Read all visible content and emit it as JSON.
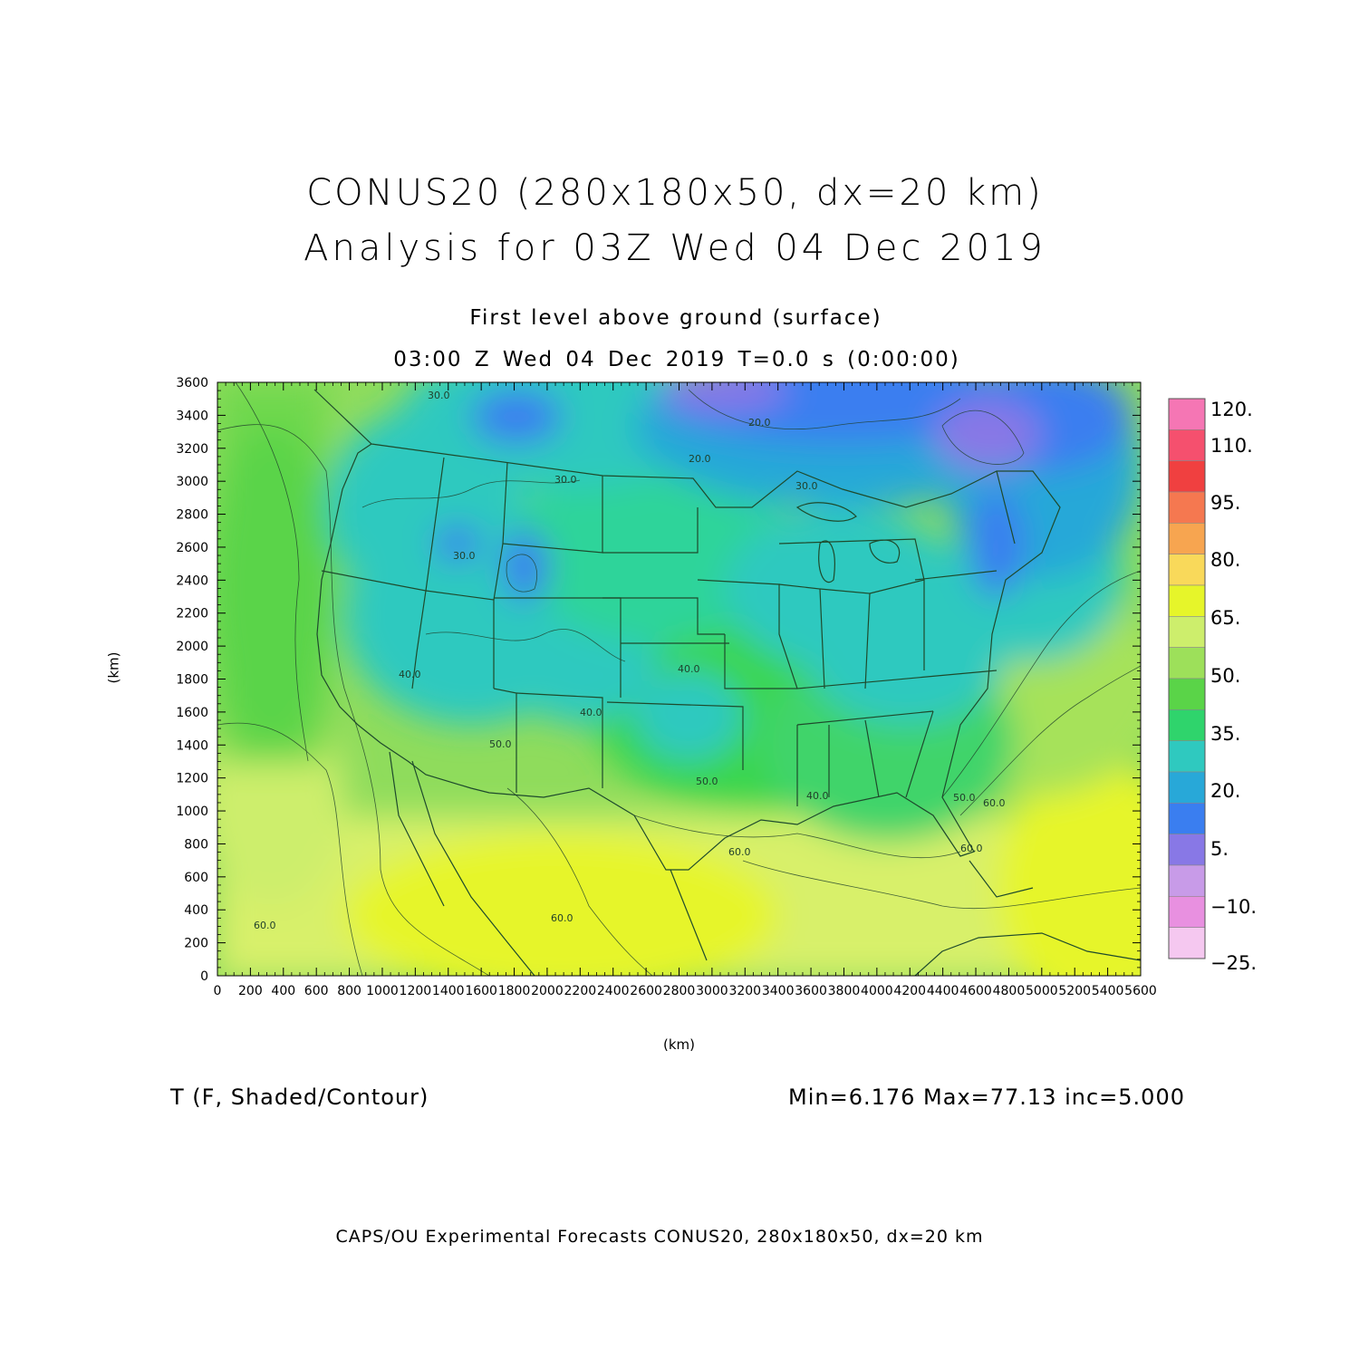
{
  "header": {
    "title_line1": "CONUS20 (280x180x50, dx=20 km)",
    "title_line2": "Analysis for 03Z Wed 04 Dec 2019",
    "subtitle_line1": "First level above ground (surface)",
    "subtitle_line2": "03:00 Z Wed 04 Dec 2019   T=0.0 s (0:00:00)"
  },
  "axes": {
    "x_label": "(km)",
    "y_label": "(km)",
    "x_ticks": [
      "0",
      "200",
      "400",
      "600",
      "800",
      "1000",
      "1200",
      "1400",
      "1600",
      "1800",
      "2000",
      "2200",
      "2400",
      "2600",
      "2800",
      "3000",
      "3200",
      "3400",
      "3600",
      "3800",
      "4000",
      "4200",
      "4400",
      "4600",
      "4800",
      "5000",
      "5200",
      "5400",
      "5600"
    ],
    "y_ticks": [
      "0",
      "200",
      "400",
      "600",
      "800",
      "1000",
      "1200",
      "1400",
      "1600",
      "1800",
      "2000",
      "2200",
      "2400",
      "2600",
      "2800",
      "3000",
      "3200",
      "3400",
      "3600"
    ],
    "x_range": [
      0,
      5600
    ],
    "y_range": [
      0,
      3600
    ]
  },
  "field": {
    "label": "T (F, Shaded/Contour)",
    "stats": "Min=6.176  Max=77.13  inc=5.000"
  },
  "colorbar": {
    "labels": [
      "120.",
      "110.",
      "95.",
      "80.",
      "65.",
      "50.",
      "35.",
      "20.",
      "5.",
      "−10.",
      "−25."
    ],
    "colors": [
      "#f576b4",
      "#f5506e",
      "#f04040",
      "#f57850",
      "#f7a550",
      "#f9d95a",
      "#e6f52a",
      "#cdee6c",
      "#9de05a",
      "#5ad448",
      "#2fd46c",
      "#2fc9bf",
      "#28a8d8",
      "#3a7ef0",
      "#8878e6",
      "#c89be8",
      "#e890e0",
      "#f5c8f0"
    ]
  },
  "contour_labels": [
    "30.0",
    "20.0",
    "30.0",
    "30.0",
    "20.0",
    "30.0",
    "40.0",
    "40.0",
    "40.0",
    "50.0",
    "50.0",
    "40.0",
    "50.0",
    "60.0",
    "60.0",
    "60.0",
    "60.0",
    "60.0"
  ],
  "footer": "CAPS/OU Experimental Forecasts  CONUS20, 280x180x50, dx=20 km"
}
